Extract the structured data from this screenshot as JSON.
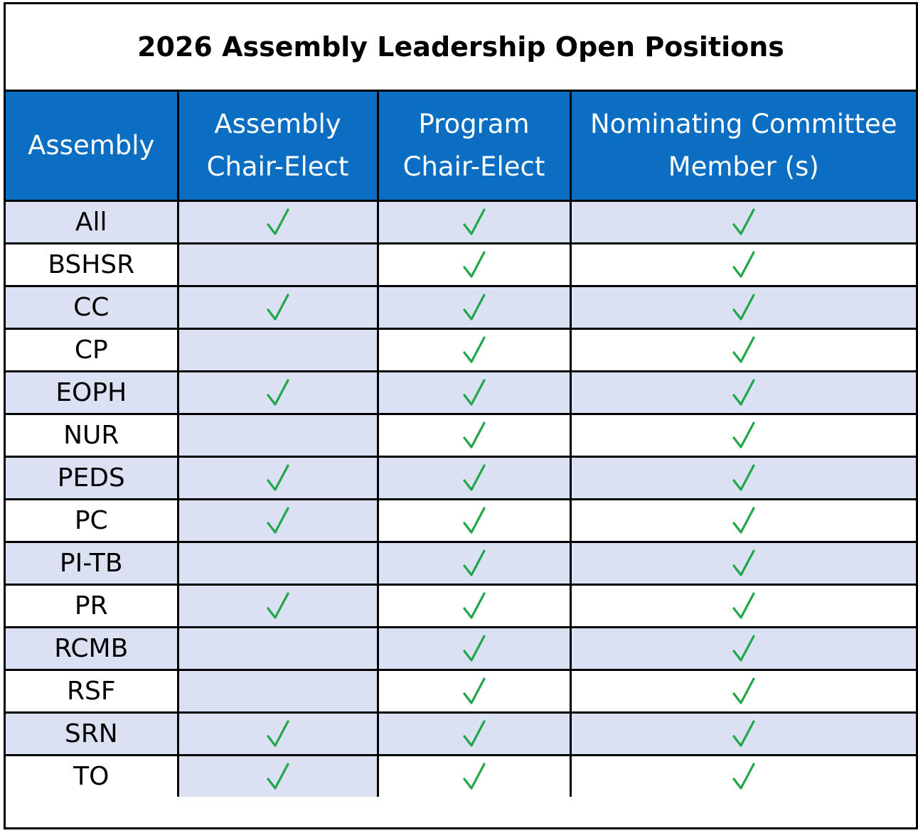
{
  "title": "2026 Assembly Leadership Open Positions",
  "headers": {
    "assembly": "Assembly",
    "assembly_chair_elect": [
      "Assembly",
      "Chair-Elect"
    ],
    "program_chair_elect": [
      "Program",
      "Chair-Elect"
    ],
    "nominating_committee": [
      "Nominating Committee",
      "Member (s)"
    ]
  },
  "check_icon": "check-mark-icon",
  "colors": {
    "header_bg": "#0B6EC2",
    "row_shade": "#D9E1F2",
    "check": "#21A64A"
  },
  "rows": [
    {
      "assembly": "All",
      "assembly_chair_elect": true,
      "program_chair_elect": true,
      "nominating_committee": true
    },
    {
      "assembly": "BSHSR",
      "assembly_chair_elect": false,
      "program_chair_elect": true,
      "nominating_committee": true
    },
    {
      "assembly": "CC",
      "assembly_chair_elect": true,
      "program_chair_elect": true,
      "nominating_committee": true
    },
    {
      "assembly": "CP",
      "assembly_chair_elect": false,
      "program_chair_elect": true,
      "nominating_committee": true
    },
    {
      "assembly": "EOPH",
      "assembly_chair_elect": true,
      "program_chair_elect": true,
      "nominating_committee": true
    },
    {
      "assembly": "NUR",
      "assembly_chair_elect": false,
      "program_chair_elect": true,
      "nominating_committee": true
    },
    {
      "assembly": "PEDS",
      "assembly_chair_elect": true,
      "program_chair_elect": true,
      "nominating_committee": true
    },
    {
      "assembly": "PC",
      "assembly_chair_elect": true,
      "program_chair_elect": true,
      "nominating_committee": true
    },
    {
      "assembly": "PI-TB",
      "assembly_chair_elect": false,
      "program_chair_elect": true,
      "nominating_committee": true
    },
    {
      "assembly": "PR",
      "assembly_chair_elect": true,
      "program_chair_elect": true,
      "nominating_committee": true
    },
    {
      "assembly": "RCMB",
      "assembly_chair_elect": false,
      "program_chair_elect": true,
      "nominating_committee": true
    },
    {
      "assembly": "RSF",
      "assembly_chair_elect": false,
      "program_chair_elect": true,
      "nominating_committee": true
    },
    {
      "assembly": "SRN",
      "assembly_chair_elect": true,
      "program_chair_elect": true,
      "nominating_committee": true
    },
    {
      "assembly": "TO",
      "assembly_chair_elect": true,
      "program_chair_elect": true,
      "nominating_committee": true
    }
  ]
}
